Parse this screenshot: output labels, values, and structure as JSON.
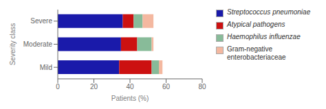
{
  "chart_data": {
    "type": "bar",
    "orientation": "horizontal",
    "stacked": true,
    "categories": [
      "Mild",
      "Moderate",
      "Severe"
    ],
    "series": [
      {
        "name": "Streptococcus pneumoniae",
        "color": "#1a1aaa",
        "values": [
          34,
          35,
          36
        ]
      },
      {
        "name": "Atypical pathogens",
        "color": "#cc1111",
        "values": [
          18,
          9,
          6
        ]
      },
      {
        "name": "Haemophilus influenzae",
        "color": "#88bb99",
        "values": [
          4,
          8,
          5
        ]
      },
      {
        "name": "Gram-negative\nenterobacteriaceae",
        "color": "#f4b8a0",
        "values": [
          2,
          1,
          6
        ]
      }
    ],
    "xlabel": "Patients (%)",
    "ylabel": "Severity class",
    "xlim": [
      0,
      80
    ],
    "xticks": [
      0,
      20,
      40,
      60,
      80
    ],
    "grid": false,
    "legend": "right"
  }
}
